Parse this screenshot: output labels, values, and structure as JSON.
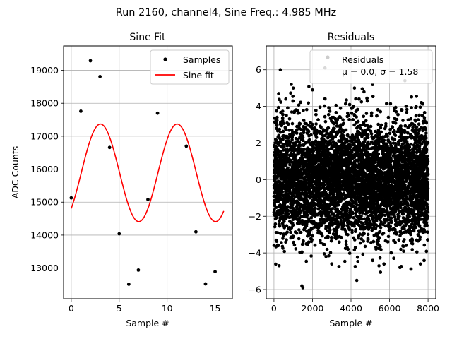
{
  "suptitle": "Run 2160, channel4, Sine Freq.: 4.985 MHz",
  "colors": {
    "samples": "#000000",
    "fit": "#ff0000",
    "grid": "#b0b0b0"
  },
  "chart_data": [
    {
      "type": "line",
      "title": "Sine Fit",
      "xlabel": "Sample #",
      "ylabel": "ADC Counts",
      "xlim": [
        -0.8,
        16.8
      ],
      "ylim": [
        12070,
        19740
      ],
      "xticks": [
        0,
        5,
        10,
        15
      ],
      "yticks": [
        13000,
        14000,
        15000,
        16000,
        17000,
        18000,
        19000
      ],
      "grid": true,
      "legend": {
        "placement": "top-right",
        "entries": [
          "Samples",
          "Sine fit"
        ]
      },
      "series": [
        {
          "name": "Samples",
          "kind": "scatter",
          "x": [
            0,
            1,
            2,
            3,
            4,
            5,
            6,
            7,
            8,
            9,
            12,
            13,
            14,
            15
          ],
          "y": [
            15130,
            17760,
            19290,
            18810,
            16660,
            14040,
            12510,
            12940,
            15080,
            17700,
            16700,
            14100,
            12520,
            12890
          ]
        },
        {
          "name": "Sine fit",
          "kind": "line",
          "function": "sine",
          "offset": 15890,
          "amplitude": 1480,
          "period": 8.0,
          "phase": -0.82,
          "x_range": [
            0,
            15.9
          ]
        }
      ]
    },
    {
      "type": "scatter",
      "title": "Residuals",
      "xlabel": "Sample #",
      "ylabel": "",
      "xlim": [
        -400,
        8400
      ],
      "ylim": [
        -6.5,
        7.3
      ],
      "xticks": [
        0,
        2000,
        4000,
        6000,
        8000
      ],
      "yticks": [
        -6,
        -4,
        -2,
        0,
        2,
        4,
        6
      ],
      "grid": true,
      "legend": {
        "placement": "top-right",
        "entries": [
          "Residuals"
        ],
        "subtitle": "μ = 0.0, σ = 1.58"
      },
      "series": [
        {
          "name": "Residuals",
          "distribution": "normal",
          "count": 8000,
          "mean": 0.0,
          "std": 1.58,
          "x_range": [
            0,
            7999
          ],
          "extreme_points": [
            [
              330,
              6.0
            ],
            [
              2650,
              6.1
            ],
            [
              4180,
              5.0
            ],
            [
              6800,
              5.4
            ],
            [
              1500,
              -5.9
            ],
            [
              1450,
              -5.8
            ],
            [
              4300,
              -5.5
            ],
            [
              900,
              5.2
            ],
            [
              1000,
              5.0
            ],
            [
              2000,
              4.9
            ],
            [
              7600,
              -4.6
            ],
            [
              3000,
              -4.6
            ]
          ]
        }
      ]
    }
  ]
}
